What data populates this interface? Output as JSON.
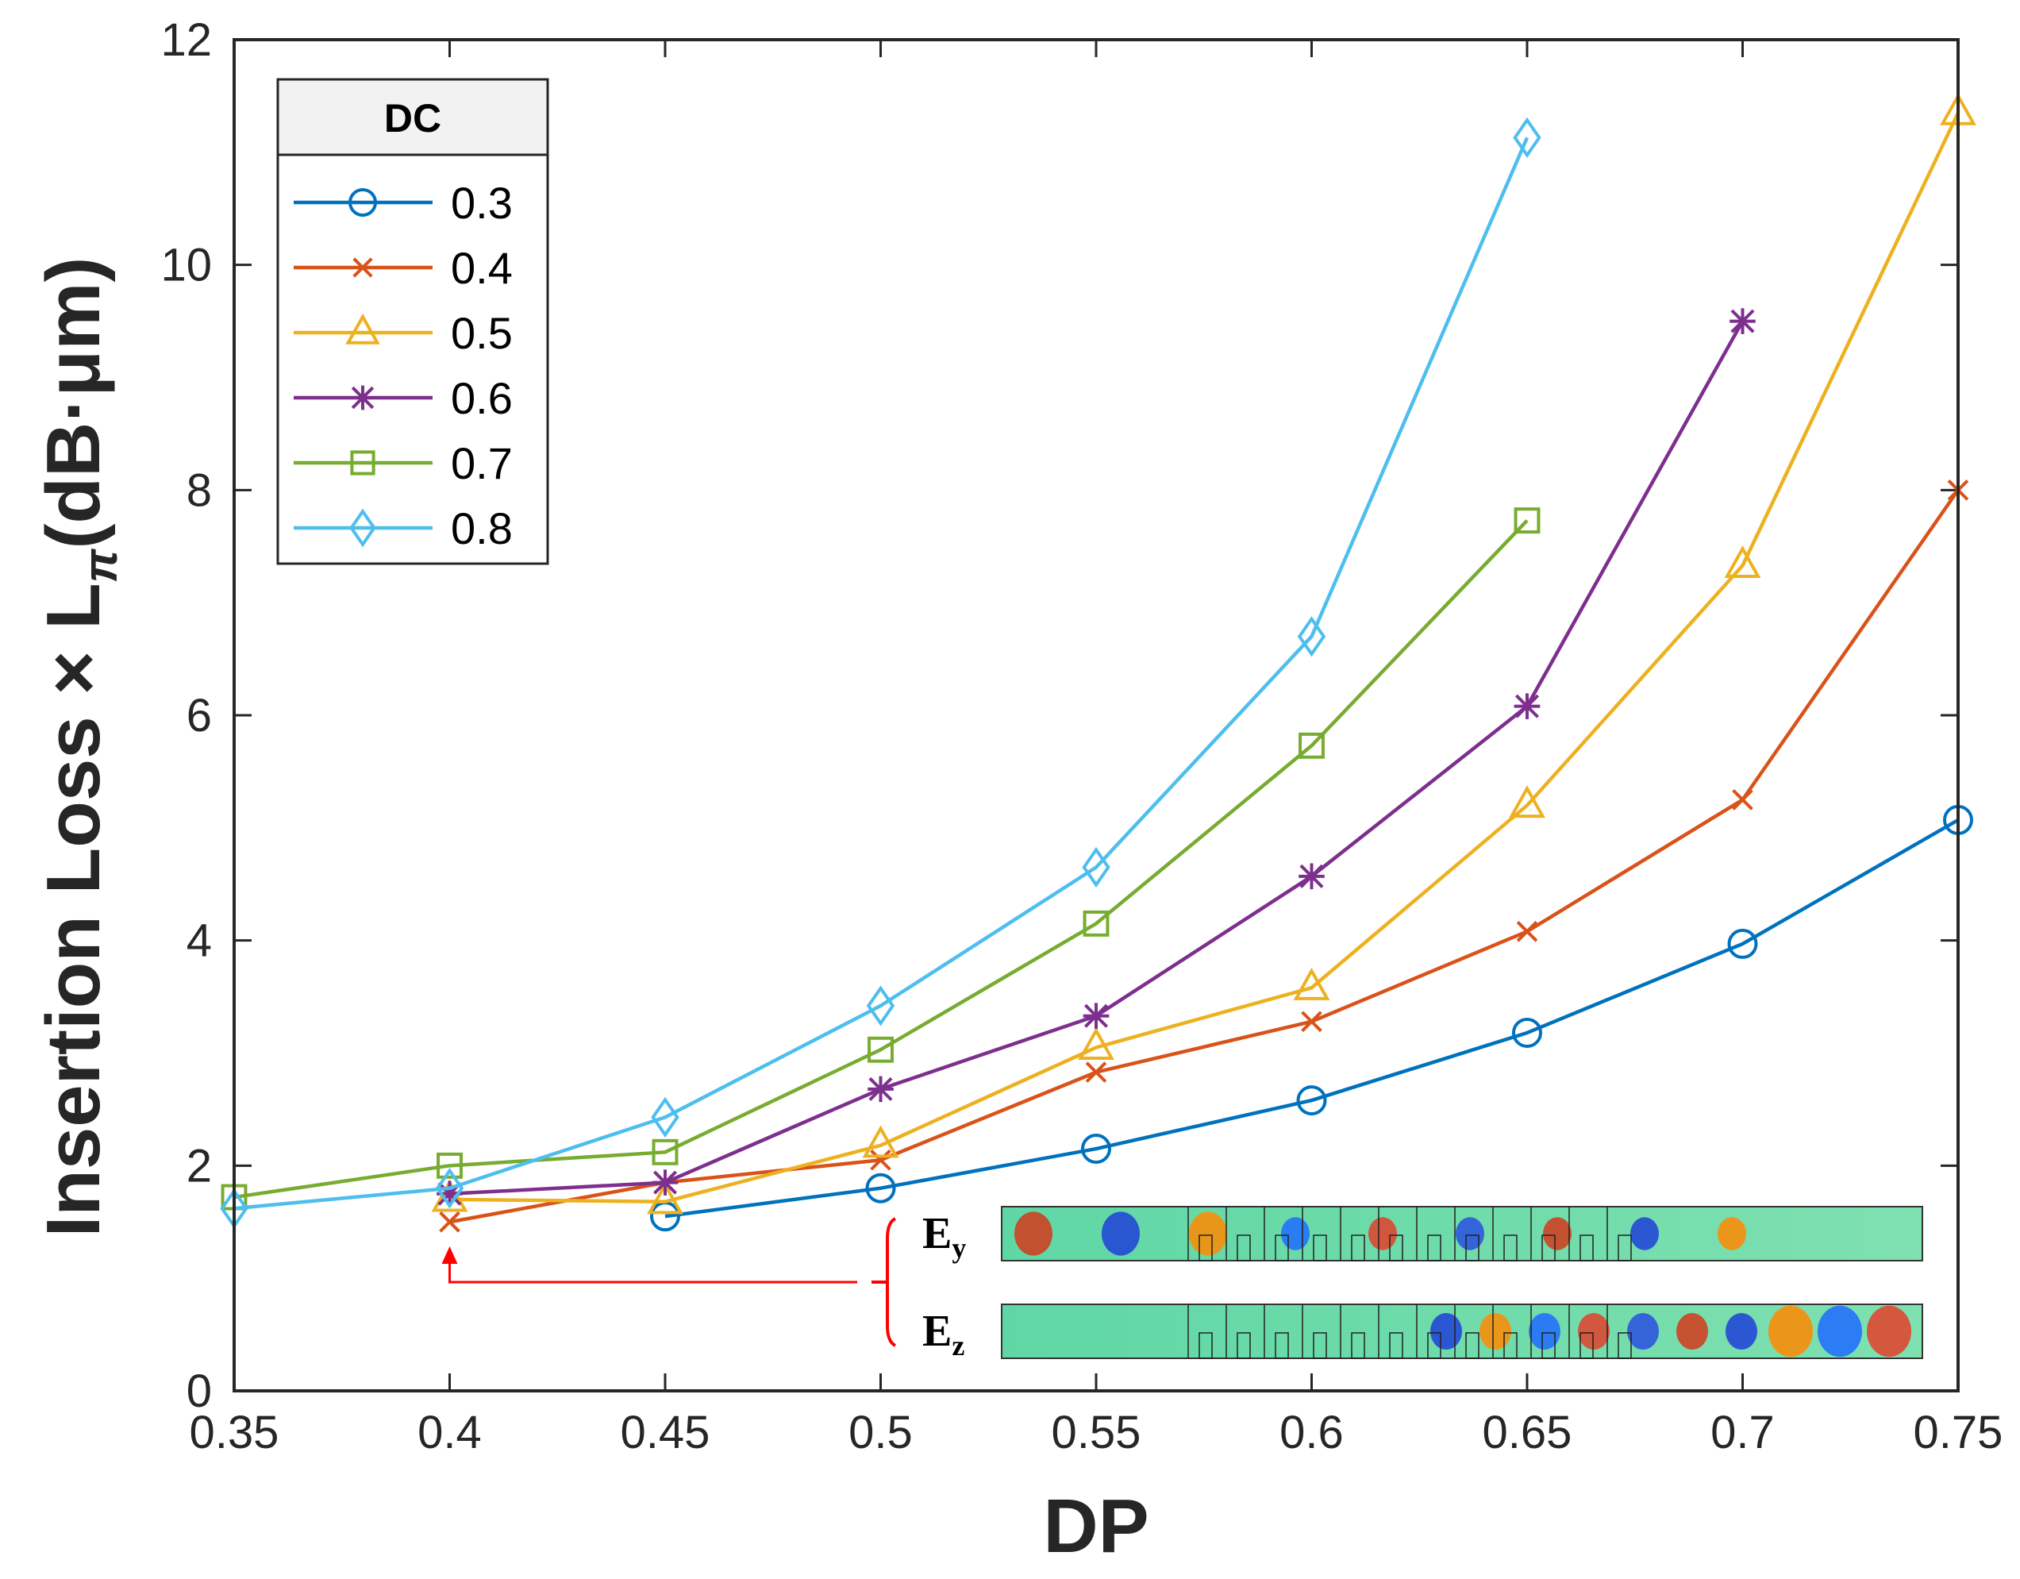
{
  "chart_data": {
    "type": "line",
    "xlabel": "DP",
    "ylabel_main": "Insertion Loss × L",
    "ylabel_subscript": "π",
    "ylabel_units": "(dB·μm)",
    "xlim": [
      0.35,
      0.75
    ],
    "ylim": [
      0,
      12
    ],
    "xticks": [
      0.35,
      0.4,
      0.45,
      0.5,
      0.55,
      0.6,
      0.65,
      0.7,
      0.75
    ],
    "xtick_labels": [
      "0.35",
      "0.4",
      "0.45",
      "0.5",
      "0.55",
      "0.6",
      "0.65",
      "0.7",
      "0.75"
    ],
    "yticks": [
      0,
      2,
      4,
      6,
      8,
      10,
      12
    ],
    "ytick_labels": [
      "0",
      "2",
      "4",
      "6",
      "8",
      "10",
      "12"
    ],
    "legend_title": "DC",
    "legend_position": "top-left",
    "series": [
      {
        "name": "0.3",
        "color": "#0072BD",
        "marker": "circle",
        "x": [
          0.45,
          0.5,
          0.55,
          0.6,
          0.65,
          0.7,
          0.75
        ],
        "y": [
          1.55,
          1.8,
          2.15,
          2.58,
          3.18,
          3.97,
          5.07
        ]
      },
      {
        "name": "0.4",
        "color": "#D95319",
        "marker": "x",
        "x": [
          0.4,
          0.45,
          0.5,
          0.55,
          0.6,
          0.65,
          0.7,
          0.75
        ],
        "y": [
          1.5,
          1.85,
          2.05,
          2.83,
          3.28,
          4.08,
          5.25,
          8.0
        ]
      },
      {
        "name": "0.5",
        "color": "#EDB120",
        "marker": "triangle",
        "x": [
          0.4,
          0.45,
          0.5,
          0.55,
          0.6,
          0.65,
          0.7,
          0.75
        ],
        "y": [
          1.7,
          1.68,
          2.18,
          3.05,
          3.58,
          5.2,
          7.33,
          11.35
        ]
      },
      {
        "name": "0.6",
        "color": "#7E2F8E",
        "marker": "asterisk",
        "x": [
          0.4,
          0.45,
          0.5,
          0.55,
          0.6,
          0.65,
          0.7
        ],
        "y": [
          1.75,
          1.85,
          2.68,
          3.33,
          4.57,
          6.08,
          9.5
        ]
      },
      {
        "name": "0.7",
        "color": "#77AC30",
        "marker": "square",
        "x": [
          0.35,
          0.4,
          0.45,
          0.5,
          0.55,
          0.6,
          0.65
        ],
        "y": [
          1.72,
          2.0,
          2.12,
          3.03,
          4.15,
          5.73,
          7.73
        ]
      },
      {
        "name": "0.8",
        "color": "#4DBEEE",
        "marker": "diamond",
        "x": [
          0.35,
          0.4,
          0.45,
          0.5,
          0.55,
          0.6,
          0.65
        ],
        "y": [
          1.62,
          1.8,
          2.43,
          3.42,
          4.65,
          6.7,
          11.13
        ]
      }
    ],
    "annotation": {
      "target_x": 0.4,
      "target_y": 1.5,
      "color": "#FF0000",
      "field_y_label": "E",
      "field_y_sub": "y",
      "field_z_label": "E",
      "field_z_sub": "z"
    }
  }
}
